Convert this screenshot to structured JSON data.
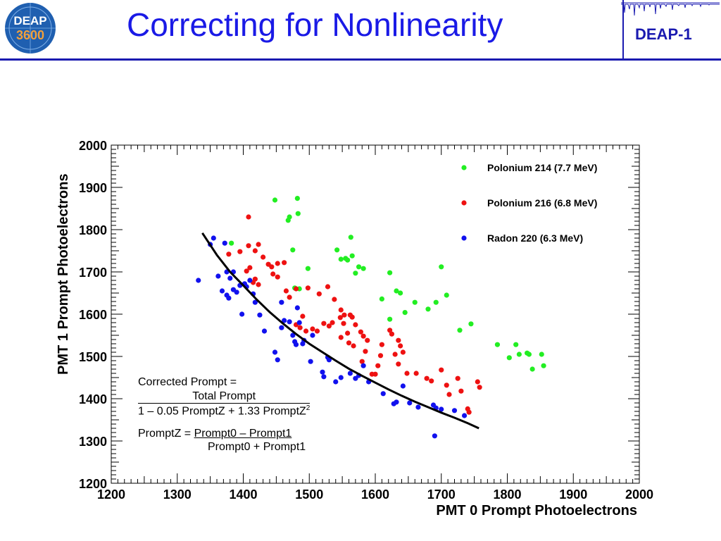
{
  "header": {
    "title": "Correcting for Nonlinearity",
    "badge": "DEAP-1",
    "logo_top": "DEAP",
    "logo_bottom": "3600"
  },
  "formula": {
    "line1": "Corrected Prompt =",
    "numerator": "Total Prompt",
    "denominator": "1 – 0.05 PromptZ + 1.33 PromptZ",
    "exponent": "2",
    "pz_label": "PromptZ = ",
    "pz_numerator": "Prompt0 – Prompt1",
    "pz_denominator": "Prompt0 + Prompt1"
  },
  "chart_data": {
    "type": "scatter",
    "xlabel": "PMT 0 Prompt Photoelectrons",
    "ylabel": "PMT 1 Prompt Photoelectrons",
    "xlim": [
      1200,
      2000
    ],
    "ylim": [
      1200,
      2000
    ],
    "xticks": [
      1200,
      1300,
      1400,
      1500,
      1600,
      1700,
      1800,
      1900,
      2000
    ],
    "yticks": [
      1200,
      1300,
      1400,
      1500,
      1600,
      1700,
      1800,
      1900,
      2000
    ],
    "legend_position": "top-right",
    "series": [
      {
        "name": "Polonium 214 (7.7 MeV)",
        "color": "#22ee22",
        "points": [
          [
            1448,
            1870
          ],
          [
            1482,
            1874
          ],
          [
            1470,
            1830
          ],
          [
            1468,
            1822
          ],
          [
            1483,
            1838
          ],
          [
            1382,
            1768
          ],
          [
            1475,
            1752
          ],
          [
            1542,
            1752
          ],
          [
            1563,
            1782
          ],
          [
            1548,
            1730
          ],
          [
            1555,
            1732
          ],
          [
            1565,
            1738
          ],
          [
            1558,
            1728
          ],
          [
            1575,
            1712
          ],
          [
            1582,
            1708
          ],
          [
            1570,
            1697
          ],
          [
            1498,
            1708
          ],
          [
            1622,
            1698
          ],
          [
            1485,
            1660
          ],
          [
            1478,
            1662
          ],
          [
            1610,
            1636
          ],
          [
            1632,
            1655
          ],
          [
            1638,
            1650
          ],
          [
            1622,
            1588
          ],
          [
            1645,
            1604
          ],
          [
            1660,
            1628
          ],
          [
            1680,
            1612
          ],
          [
            1692,
            1628
          ],
          [
            1700,
            1712
          ],
          [
            1708,
            1645
          ],
          [
            1745,
            1577
          ],
          [
            1728,
            1562
          ],
          [
            1785,
            1528
          ],
          [
            1803,
            1497
          ],
          [
            1813,
            1528
          ],
          [
            1818,
            1505
          ],
          [
            1830,
            1508
          ],
          [
            1833,
            1505
          ],
          [
            1838,
            1470
          ],
          [
            1852,
            1505
          ],
          [
            1855,
            1478
          ]
        ]
      },
      {
        "name": "Polonium 216 (6.8 MeV)",
        "color": "#ee1111",
        "points": [
          [
            1408,
            1830
          ],
          [
            1378,
            1742
          ],
          [
            1395,
            1748
          ],
          [
            1408,
            1762
          ],
          [
            1418,
            1750
          ],
          [
            1423,
            1765
          ],
          [
            1430,
            1735
          ],
          [
            1438,
            1718
          ],
          [
            1443,
            1712
          ],
          [
            1452,
            1720
          ],
          [
            1462,
            1722
          ],
          [
            1445,
            1695
          ],
          [
            1452,
            1688
          ],
          [
            1405,
            1702
          ],
          [
            1410,
            1710
          ],
          [
            1418,
            1683
          ],
          [
            1415,
            1675
          ],
          [
            1423,
            1670
          ],
          [
            1465,
            1655
          ],
          [
            1470,
            1640
          ],
          [
            1480,
            1660
          ],
          [
            1498,
            1662
          ],
          [
            1515,
            1648
          ],
          [
            1528,
            1665
          ],
          [
            1538,
            1635
          ],
          [
            1548,
            1610
          ],
          [
            1553,
            1598
          ],
          [
            1490,
            1595
          ],
          [
            1480,
            1575
          ],
          [
            1486,
            1568
          ],
          [
            1495,
            1560
          ],
          [
            1505,
            1565
          ],
          [
            1512,
            1560
          ],
          [
            1522,
            1578
          ],
          [
            1530,
            1572
          ],
          [
            1535,
            1580
          ],
          [
            1547,
            1592
          ],
          [
            1552,
            1578
          ],
          [
            1558,
            1555
          ],
          [
            1562,
            1598
          ],
          [
            1565,
            1593
          ],
          [
            1570,
            1575
          ],
          [
            1548,
            1545
          ],
          [
            1560,
            1532
          ],
          [
            1567,
            1525
          ],
          [
            1578,
            1558
          ],
          [
            1582,
            1548
          ],
          [
            1588,
            1538
          ],
          [
            1610,
            1528
          ],
          [
            1622,
            1562
          ],
          [
            1625,
            1553
          ],
          [
            1635,
            1538
          ],
          [
            1638,
            1525
          ],
          [
            1642,
            1510
          ],
          [
            1635,
            1482
          ],
          [
            1580,
            1488
          ],
          [
            1595,
            1458
          ],
          [
            1604,
            1478
          ],
          [
            1608,
            1502
          ],
          [
            1585,
            1512
          ],
          [
            1600,
            1458
          ],
          [
            1630,
            1505
          ],
          [
            1648,
            1460
          ],
          [
            1662,
            1460
          ],
          [
            1678,
            1448
          ],
          [
            1685,
            1442
          ],
          [
            1700,
            1468
          ],
          [
            1708,
            1432
          ],
          [
            1712,
            1410
          ],
          [
            1725,
            1448
          ],
          [
            1730,
            1418
          ],
          [
            1742,
            1368
          ],
          [
            1755,
            1440
          ],
          [
            1758,
            1427
          ],
          [
            1740,
            1376
          ]
        ]
      },
      {
        "name": "Radon 220 (6.3 MeV)",
        "color": "#1111ee",
        "points": [
          [
            1332,
            1680
          ],
          [
            1355,
            1780
          ],
          [
            1350,
            1765
          ],
          [
            1372,
            1768
          ],
          [
            1362,
            1690
          ],
          [
            1375,
            1700
          ],
          [
            1380,
            1685
          ],
          [
            1385,
            1700
          ],
          [
            1368,
            1655
          ],
          [
            1375,
            1645
          ],
          [
            1378,
            1638
          ],
          [
            1385,
            1658
          ],
          [
            1390,
            1652
          ],
          [
            1395,
            1668
          ],
          [
            1402,
            1672
          ],
          [
            1405,
            1665
          ],
          [
            1410,
            1680
          ],
          [
            1415,
            1648
          ],
          [
            1398,
            1600
          ],
          [
            1418,
            1628
          ],
          [
            1425,
            1598
          ],
          [
            1432,
            1560
          ],
          [
            1448,
            1510
          ],
          [
            1452,
            1492
          ],
          [
            1458,
            1568
          ],
          [
            1458,
            1628
          ],
          [
            1462,
            1585
          ],
          [
            1470,
            1582
          ],
          [
            1475,
            1550
          ],
          [
            1478,
            1535
          ],
          [
            1480,
            1528
          ],
          [
            1482,
            1615
          ],
          [
            1485,
            1580
          ],
          [
            1490,
            1530
          ],
          [
            1492,
            1538
          ],
          [
            1502,
            1488
          ],
          [
            1505,
            1550
          ],
          [
            1520,
            1463
          ],
          [
            1522,
            1452
          ],
          [
            1528,
            1498
          ],
          [
            1530,
            1492
          ],
          [
            1540,
            1440
          ],
          [
            1548,
            1450
          ],
          [
            1562,
            1460
          ],
          [
            1570,
            1448
          ],
          [
            1575,
            1455
          ],
          [
            1582,
            1478
          ],
          [
            1590,
            1440
          ],
          [
            1612,
            1412
          ],
          [
            1628,
            1388
          ],
          [
            1632,
            1392
          ],
          [
            1642,
            1430
          ],
          [
            1652,
            1390
          ],
          [
            1665,
            1380
          ],
          [
            1688,
            1385
          ],
          [
            1692,
            1378
          ],
          [
            1700,
            1375
          ],
          [
            1720,
            1372
          ],
          [
            1735,
            1360
          ],
          [
            1690,
            1312
          ]
        ]
      }
    ],
    "fit_curve": [
      [
        1338,
        1792
      ],
      [
        1360,
        1740
      ],
      [
        1380,
        1700
      ],
      [
        1400,
        1668
      ],
      [
        1420,
        1635
      ],
      [
        1440,
        1605
      ],
      [
        1460,
        1578
      ],
      [
        1480,
        1553
      ],
      [
        1500,
        1530
      ],
      [
        1520,
        1510
      ],
      [
        1540,
        1490
      ],
      [
        1560,
        1471
      ],
      [
        1580,
        1454
      ],
      [
        1600,
        1438
      ],
      [
        1620,
        1422
      ],
      [
        1640,
        1407
      ],
      [
        1660,
        1393
      ],
      [
        1680,
        1380
      ],
      [
        1700,
        1367
      ],
      [
        1720,
        1355
      ],
      [
        1740,
        1342
      ],
      [
        1757,
        1330
      ]
    ]
  }
}
